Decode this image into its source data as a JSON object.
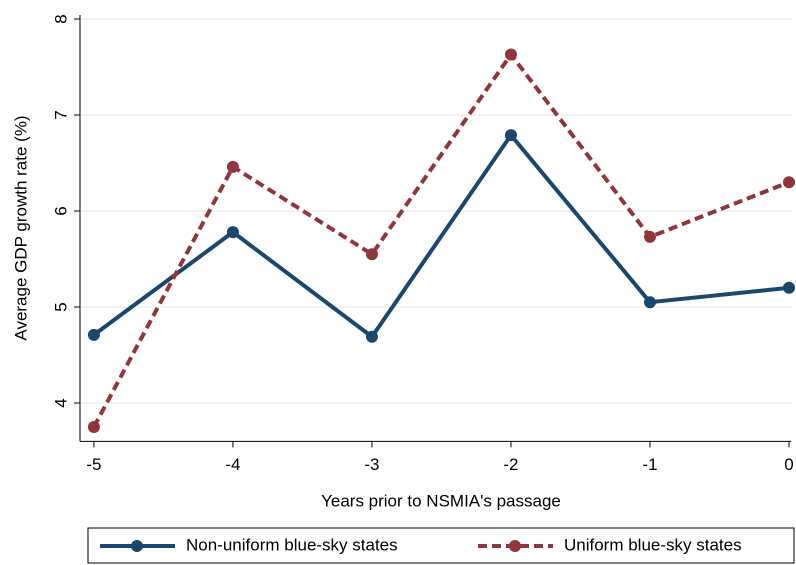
{
  "chart_data": {
    "type": "line",
    "x_label": "Years prior to NSMIA's passage",
    "y_label": "Average GDP growth rate (%)",
    "x": [
      -5,
      -4,
      -3,
      -2,
      -1,
      0
    ],
    "series": [
      {
        "name": "Non-uniform blue-sky states",
        "color": "#1a476f",
        "line_style": "solid",
        "values": [
          4.71,
          5.78,
          4.69,
          6.79,
          5.05,
          5.2
        ]
      },
      {
        "name": "Uniform blue-sky states",
        "color": "#90353b",
        "line_style": "dashed",
        "values": [
          3.75,
          6.46,
          5.55,
          7.63,
          5.73,
          6.3
        ]
      }
    ],
    "xlim": [
      -5.1,
      0
    ],
    "xticks": [
      -5,
      -4,
      -3,
      -2,
      -1,
      0
    ],
    "ylim": [
      3.6,
      8
    ],
    "yticks": [
      4,
      5,
      6,
      7,
      8
    ],
    "grid": true,
    "legend": "bottom"
  }
}
